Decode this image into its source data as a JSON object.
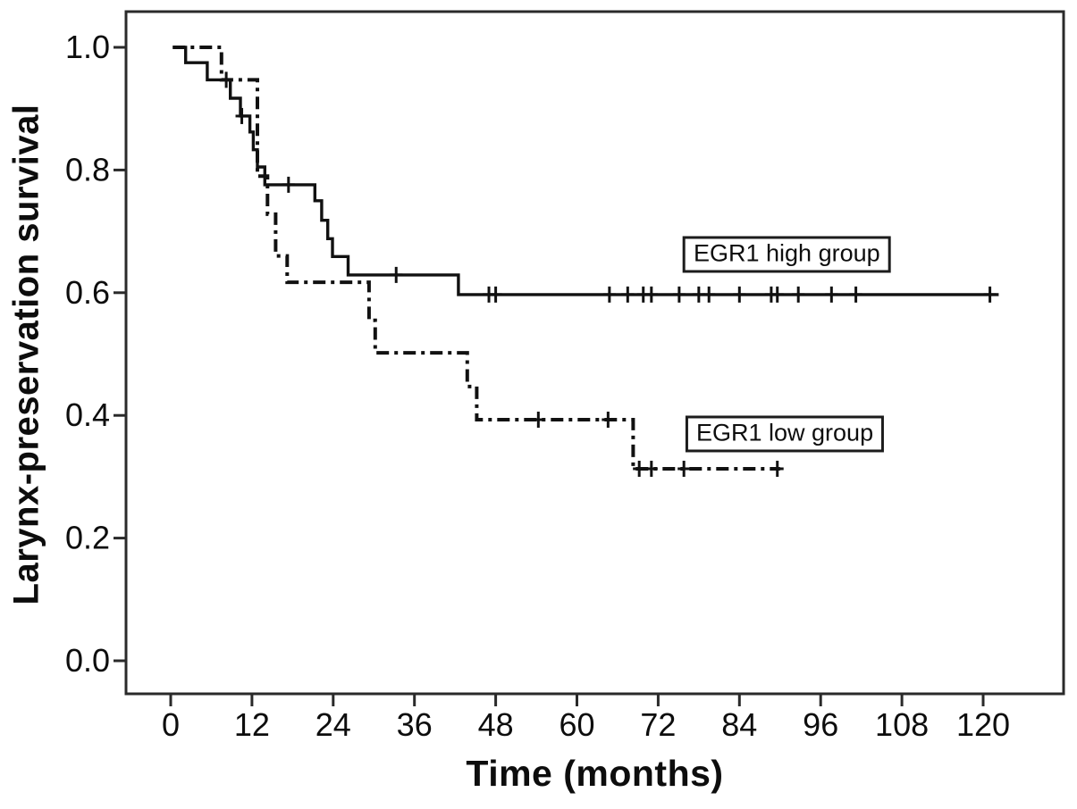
{
  "figure": {
    "background_color": "#ffffff",
    "line_color": "#111111"
  },
  "chart_data": {
    "type": "line",
    "subtype": "kaplan_meier_step",
    "xlabel": "Time (months)",
    "ylabel": "Larynx-preservation survival",
    "x_ticks": [
      0,
      12,
      24,
      36,
      48,
      60,
      72,
      84,
      96,
      108,
      120
    ],
    "y_ticks": [
      "0.0",
      "0.2",
      "0.4",
      "0.6",
      "0.8",
      "1.0"
    ],
    "xlim": [
      -6.6,
      131.9
    ],
    "ylim": [
      -0.054,
      1.058
    ],
    "grid": false,
    "legend_position": "boxed-labels-inline",
    "series": [
      {
        "name": "EGR1 high group",
        "line_style": "solid",
        "color": "#111111",
        "start_month": 0.3,
        "end_month": 122.3,
        "steps": [
          [
            0.3,
            1.0
          ],
          [
            2.2,
            0.975
          ],
          [
            5.4,
            0.947
          ],
          [
            8.8,
            0.917
          ],
          [
            10.3,
            0.888
          ],
          [
            11.7,
            0.862
          ],
          [
            12.2,
            0.833
          ],
          [
            12.8,
            0.805
          ],
          [
            13.9,
            0.776
          ],
          [
            21.3,
            0.75
          ],
          [
            22.3,
            0.718
          ],
          [
            23.2,
            0.688
          ],
          [
            23.9,
            0.659
          ],
          [
            26.2,
            0.629
          ],
          [
            42.5,
            0.597
          ]
        ],
        "censor_marks": [
          [
            8.2,
            0.947
          ],
          [
            10.5,
            0.888
          ],
          [
            17.4,
            0.776
          ],
          [
            33.3,
            0.629
          ],
          [
            47.0,
            0.597
          ],
          [
            48.0,
            0.597
          ],
          [
            64.8,
            0.597
          ],
          [
            67.5,
            0.597
          ],
          [
            69.8,
            0.597
          ],
          [
            71.0,
            0.597
          ],
          [
            75.1,
            0.597
          ],
          [
            78.0,
            0.597
          ],
          [
            79.5,
            0.597
          ],
          [
            84.0,
            0.597
          ],
          [
            88.7,
            0.597
          ],
          [
            89.6,
            0.597
          ],
          [
            92.7,
            0.597
          ],
          [
            97.6,
            0.597
          ],
          [
            101.2,
            0.597
          ],
          [
            121.0,
            0.597
          ]
        ],
        "label": {
          "text": "EGR1 high group",
          "anchor_month": 91.0,
          "anchor_value": 0.662
        }
      },
      {
        "name": "EGR1 low group",
        "line_style": "dash-dot",
        "color": "#111111",
        "start_month": 0.3,
        "end_month": 90.0,
        "steps": [
          [
            0.3,
            1.0
          ],
          [
            7.5,
            0.947
          ],
          [
            12.8,
            0.79
          ],
          [
            14.3,
            0.728
          ],
          [
            15.5,
            0.66
          ],
          [
            17.2,
            0.617
          ],
          [
            29.3,
            0.555
          ],
          [
            30.2,
            0.502
          ],
          [
            43.8,
            0.447
          ],
          [
            45.2,
            0.393
          ],
          [
            68.3,
            0.313
          ]
        ],
        "censor_marks": [
          [
            54.3,
            0.393
          ],
          [
            64.6,
            0.393
          ],
          [
            69.2,
            0.313
          ],
          [
            71.0,
            0.313
          ],
          [
            75.8,
            0.313
          ],
          [
            89.6,
            0.313
          ]
        ],
        "label": {
          "text": "EGR1 low group",
          "anchor_month": 90.7,
          "anchor_value": 0.37
        }
      }
    ]
  }
}
